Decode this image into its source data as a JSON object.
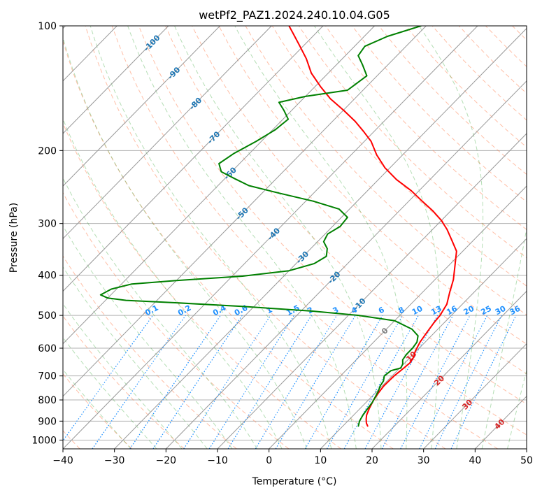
{
  "chart_data": {
    "type": "skew-t",
    "title": "wetPf2_PAZ1.2024.240.10.04.G05",
    "xlabel": "Temperature (°C)",
    "ylabel": "Pressure (hPa)",
    "xlim": [
      -40,
      50
    ],
    "ylim": [
      1050,
      100
    ],
    "y_scale": "log",
    "x_ticks": [
      -40,
      -30,
      -20,
      -10,
      0,
      10,
      20,
      30,
      40,
      50
    ],
    "x_tick_labels": [
      "−40",
      "−30",
      "−20",
      "−10",
      "0",
      "10",
      "20",
      "30",
      "40",
      "50"
    ],
    "y_ticks": [
      1000,
      900,
      800,
      700,
      600,
      500,
      400,
      300,
      200,
      100
    ],
    "y_tick_labels": [
      "1000",
      "900",
      "800",
      "700",
      "600",
      "500",
      "400",
      "300",
      "200",
      "100"
    ],
    "grid": true,
    "colors": {
      "temperature": "#ff0000",
      "dewpoint": "#008000",
      "isotherm": "#999999",
      "dry_adiabat": "#ff7f50",
      "moist_adiabat": "#2ca02c",
      "mixing_ratio": "#1e90ff",
      "isotherm_label": "#1f77b4",
      "red_label": "#d62728",
      "zero_label": "#808080"
    },
    "series": [
      {
        "key": "temperature",
        "points": [
          [
            14.8,
            925
          ],
          [
            14.0,
            910
          ],
          [
            13.2,
            890
          ],
          [
            12.5,
            870
          ],
          [
            11.8,
            840
          ],
          [
            11.0,
            800
          ],
          [
            10.6,
            770
          ],
          [
            10.3,
            740
          ],
          [
            10.4,
            700
          ],
          [
            10.8,
            670
          ],
          [
            11.0,
            650
          ],
          [
            10.6,
            630
          ],
          [
            9.8,
            610
          ],
          [
            9.0,
            580
          ],
          [
            8.5,
            550
          ],
          [
            8.0,
            520
          ],
          [
            7.8,
            500
          ],
          [
            7.0,
            470
          ],
          [
            5.3,
            440
          ],
          [
            3.6,
            410
          ],
          [
            1.3,
            380
          ],
          [
            -1.2,
            350
          ],
          [
            -4.1,
            330
          ],
          [
            -7.2,
            310
          ],
          [
            -10.0,
            295
          ],
          [
            -13.4,
            280
          ],
          [
            -17.4,
            265
          ],
          [
            -21.5,
            250
          ],
          [
            -26.5,
            235
          ],
          [
            -31.0,
            220
          ],
          [
            -35.0,
            205
          ],
          [
            -38.7,
            190
          ],
          [
            -42.0,
            180
          ],
          [
            -45.6,
            170
          ],
          [
            -49.9,
            160
          ],
          [
            -54.7,
            150
          ],
          [
            -59.0,
            140
          ],
          [
            -63.3,
            130
          ],
          [
            -67.0,
            120
          ],
          [
            -70.6,
            112
          ],
          [
            -74.0,
            105
          ],
          [
            -76.6,
            100
          ]
        ]
      },
      {
        "key": "dewpoint",
        "points": [
          [
            13.0,
            925
          ],
          [
            12.3,
            900
          ],
          [
            11.8,
            870
          ],
          [
            11.5,
            840
          ],
          [
            11.2,
            810
          ],
          [
            10.8,
            790
          ],
          [
            10.2,
            760
          ],
          [
            9.6,
            740
          ],
          [
            9.3,
            720
          ],
          [
            8.5,
            700
          ],
          [
            8.8,
            680
          ],
          [
            10.2,
            670
          ],
          [
            9.8,
            655
          ],
          [
            9.0,
            640
          ],
          [
            8.7,
            620
          ],
          [
            8.7,
            600
          ],
          [
            8.4,
            580
          ],
          [
            7.4,
            560
          ],
          [
            5.0,
            540
          ],
          [
            0.0,
            515
          ],
          [
            -8.0,
            500
          ],
          [
            -18.0,
            488
          ],
          [
            -32.0,
            476
          ],
          [
            -46.0,
            466
          ],
          [
            -56.0,
            460
          ],
          [
            -60.0,
            454
          ],
          [
            -62.0,
            446
          ],
          [
            -61.0,
            432
          ],
          [
            -58.0,
            420
          ],
          [
            -50.0,
            412
          ],
          [
            -38.0,
            402
          ],
          [
            -30.0,
            390
          ],
          [
            -26.5,
            375
          ],
          [
            -25.5,
            360
          ],
          [
            -26.8,
            345
          ],
          [
            -28.8,
            332
          ],
          [
            -29.5,
            318
          ],
          [
            -28.5,
            305
          ],
          [
            -28.8,
            290
          ],
          [
            -32.0,
            277
          ],
          [
            -38.5,
            265
          ],
          [
            -47.0,
            253
          ],
          [
            -54.0,
            243
          ],
          [
            -58.0,
            234
          ],
          [
            -62.0,
            225
          ],
          [
            -64.0,
            215
          ],
          [
            -63.0,
            203
          ],
          [
            -61.0,
            190
          ],
          [
            -59.5,
            178
          ],
          [
            -59.0,
            168
          ],
          [
            -61.5,
            160
          ],
          [
            -64.0,
            153
          ],
          [
            -60.0,
            148
          ],
          [
            -53.0,
            143
          ],
          [
            -52.0,
            132
          ],
          [
            -55.0,
            124
          ],
          [
            -57.5,
            118
          ],
          [
            -58.0,
            112
          ],
          [
            -55.5,
            106
          ],
          [
            -51.0,
            100
          ]
        ]
      }
    ],
    "isotherm_labels": [
      "-100",
      "-90",
      "-80",
      "-70",
      "-60",
      "-50",
      "-40",
      "-30",
      "-20",
      "-10",
      "0",
      "10",
      "20",
      "30",
      "40"
    ],
    "mixing_ratio_labels": [
      "0.1",
      "0.2",
      "0.4",
      "0.6",
      "1",
      "1.5",
      "2",
      "3",
      "4",
      "6",
      "8",
      "10",
      "13",
      "16",
      "20",
      "25",
      "30",
      "36"
    ]
  }
}
